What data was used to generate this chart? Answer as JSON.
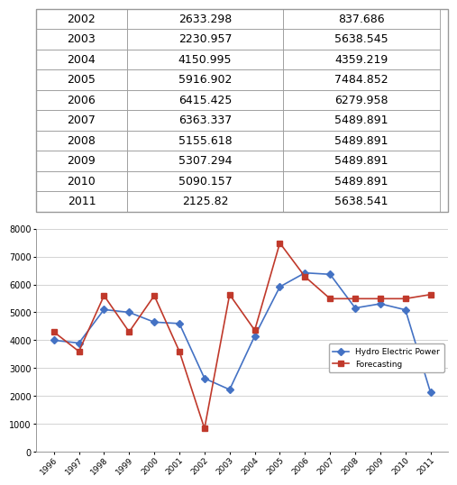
{
  "table_data": [
    [
      "2002",
      "2633.298",
      "837.686"
    ],
    [
      "2003",
      "2230.957",
      "5638.545"
    ],
    [
      "2004",
      "4150.995",
      "4359.219"
    ],
    [
      "2005",
      "5916.902",
      "7484.852"
    ],
    [
      "2006",
      "6415.425",
      "6279.958"
    ],
    [
      "2007",
      "6363.337",
      "5489.891"
    ],
    [
      "2008",
      "5155.618",
      "5489.891"
    ],
    [
      "2009",
      "5307.294",
      "5489.891"
    ],
    [
      "2010",
      "5090.157",
      "5489.891"
    ],
    [
      "2011",
      "2125.82",
      "5638.541"
    ]
  ],
  "years": [
    1996,
    1997,
    1998,
    1999,
    2000,
    2001,
    2002,
    2003,
    2004,
    2005,
    2006,
    2007,
    2008,
    2009,
    2010,
    2011
  ],
  "hydro": [
    4000,
    3900,
    5100,
    5000,
    4650,
    4600,
    2633.298,
    2230.957,
    4150.995,
    5916.902,
    6415.425,
    6363.337,
    5155.618,
    5307.294,
    5090.157,
    2125.82
  ],
  "forecast": [
    4300,
    3600,
    5600,
    4300,
    5600,
    3600,
    837.686,
    5638.545,
    4359.219,
    7484.852,
    6279.958,
    5489.891,
    5489.891,
    5489.891,
    5489.891,
    5638.541
  ],
  "hydro_color": "#4472C4",
  "forecast_color": "#C0392B",
  "hydro_label": "Hydro Electric Power",
  "forecast_label": "Forecasting",
  "ylim": [
    0,
    8000
  ],
  "yticks": [
    0,
    1000,
    2000,
    3000,
    4000,
    5000,
    6000,
    7000,
    8000
  ],
  "bg_color": "#FFFFFF",
  "grid_color": "#CCCCCC",
  "table_line_color": "#999999",
  "cell_fontsize": 9,
  "chart_fontsize": 8
}
